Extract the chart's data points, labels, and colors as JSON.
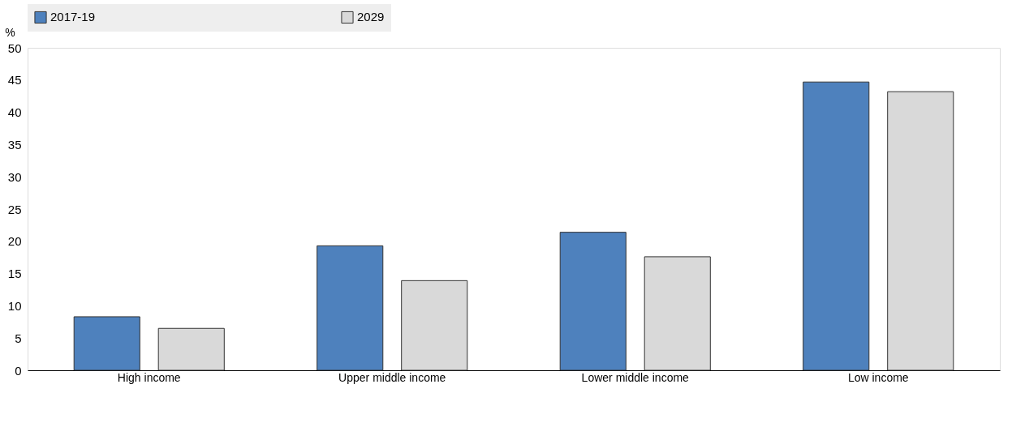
{
  "chart_data": {
    "type": "bar",
    "ylabel": "%",
    "categories": [
      "High income",
      "Upper middle income",
      "Lower middle income",
      "Low income"
    ],
    "series": [
      {
        "name": "2017-19",
        "color": "#4e81bd",
        "values": [
          8.3,
          19.3,
          21.4,
          44.7
        ]
      },
      {
        "name": "2029",
        "color": "#d9d9d9",
        "values": [
          6.5,
          13.9,
          17.6,
          43.2
        ]
      }
    ],
    "ylim": [
      0,
      50
    ],
    "yticks": [
      0,
      5,
      10,
      15,
      20,
      25,
      30,
      35,
      40,
      45,
      50
    ],
    "grid": false,
    "legend": "top"
  }
}
